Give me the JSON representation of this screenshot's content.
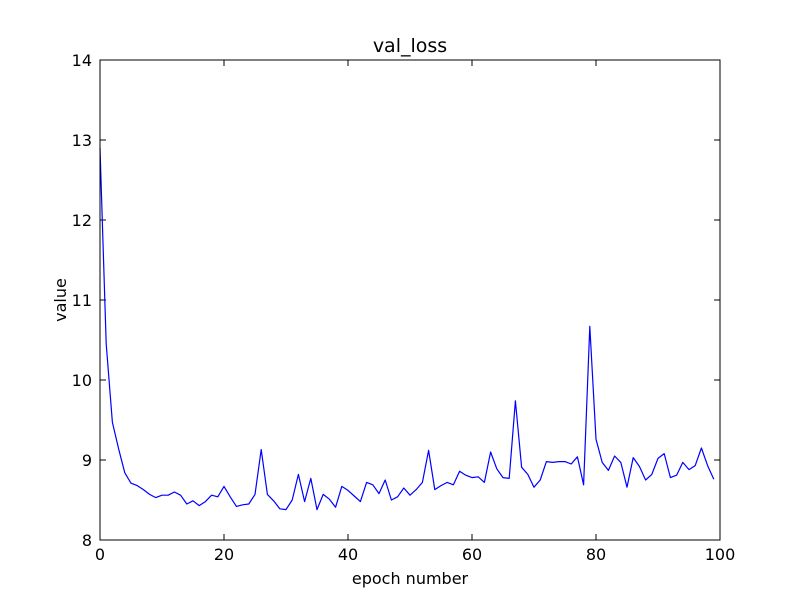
{
  "chart_data": {
    "type": "line",
    "title": "val_loss",
    "xlabel": "epoch number",
    "ylabel": "value",
    "xlim": [
      0,
      100
    ],
    "ylim": [
      8,
      14
    ],
    "xticks": [
      0,
      20,
      40,
      60,
      80,
      100
    ],
    "yticks": [
      8,
      9,
      10,
      11,
      12,
      13,
      14
    ],
    "grid": false,
    "line_color": "#0000ff",
    "series": [
      {
        "x": [
          0,
          1,
          2,
          3,
          4,
          5,
          6,
          7,
          8,
          9,
          10,
          11,
          12,
          13,
          14,
          15,
          16,
          17,
          18,
          19,
          20,
          21,
          22,
          23,
          24,
          25,
          26,
          27,
          28,
          29,
          30,
          31,
          32,
          33,
          34,
          35,
          36,
          37,
          38,
          39,
          40,
          41,
          42,
          43,
          44,
          45,
          46,
          47,
          48,
          49,
          50,
          51,
          52,
          53,
          54,
          55,
          56,
          57,
          58,
          59,
          60,
          61,
          62,
          63,
          64,
          65,
          66,
          67,
          68,
          69,
          70,
          71,
          72,
          73,
          74,
          75,
          76,
          77,
          78,
          79,
          80,
          81,
          82,
          83,
          84,
          85,
          86,
          87,
          88,
          89,
          90,
          91,
          92,
          93,
          94,
          95,
          96,
          97,
          98,
          99
        ],
        "values": [
          12.9,
          10.45,
          9.47,
          9.14,
          8.84,
          8.71,
          8.68,
          8.63,
          8.57,
          8.53,
          8.56,
          8.56,
          8.6,
          8.56,
          8.45,
          8.49,
          8.43,
          8.48,
          8.56,
          8.54,
          8.67,
          8.54,
          8.42,
          8.44,
          8.45,
          8.57,
          9.13,
          8.57,
          8.49,
          8.39,
          8.38,
          8.5,
          8.82,
          8.48,
          8.77,
          8.38,
          8.57,
          8.51,
          8.41,
          8.67,
          8.62,
          8.55,
          8.48,
          8.72,
          8.69,
          8.58,
          8.75,
          8.5,
          8.54,
          8.65,
          8.56,
          8.63,
          8.72,
          9.12,
          8.63,
          8.68,
          8.72,
          8.69,
          8.86,
          8.81,
          8.78,
          8.79,
          8.72,
          9.1,
          8.89,
          8.78,
          8.77,
          9.74,
          8.91,
          8.82,
          8.66,
          8.75,
          8.98,
          8.97,
          8.98,
          8.98,
          8.95,
          9.04,
          8.69,
          10.67,
          9.26,
          8.97,
          8.87,
          9.05,
          8.97,
          8.66,
          9.03,
          8.92,
          8.75,
          8.82,
          9.02,
          9.08,
          8.78,
          8.81,
          8.97,
          8.88,
          8.93,
          9.15,
          8.93,
          8.76
        ]
      }
    ]
  }
}
